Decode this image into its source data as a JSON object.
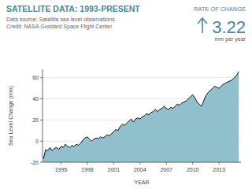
{
  "chart_data": {
    "type": "area",
    "title": "SATELLITE DATA: 1993-PRESENT",
    "subtitle": [
      "Data source: Satellite sea level observations.",
      "Credit: NASA Goddard Space Flight Center"
    ],
    "rate_of_change": {
      "label": "RATE OF CHANGE",
      "value": 3.22,
      "unit": "mm per year"
    },
    "x_label": "YEAR",
    "y_label": "Sea Level Change (mm)",
    "color": "#8fc0cc",
    "grid": true,
    "xlim": [
      1992.9,
      2015.5
    ],
    "xticks": [
      1995,
      1998,
      2001,
      2004,
      2007,
      2010,
      2013
    ],
    "ylim": [
      -20,
      68
    ],
    "yticks": [
      -20,
      0,
      20,
      40,
      60
    ],
    "x": [
      1993.0,
      1993.25,
      1993.5,
      1993.75,
      1994.0,
      1994.25,
      1994.5,
      1994.75,
      1995.0,
      1995.25,
      1995.5,
      1995.75,
      1996.0,
      1996.25,
      1996.5,
      1996.75,
      1997.0,
      1997.25,
      1997.5,
      1997.75,
      1998.0,
      1998.25,
      1998.5,
      1998.75,
      1999.0,
      1999.25,
      1999.5,
      1999.75,
      2000.0,
      2000.25,
      2000.5,
      2000.75,
      2001.0,
      2001.25,
      2001.5,
      2001.75,
      2002.0,
      2002.25,
      2002.5,
      2002.75,
      2003.0,
      2003.25,
      2003.5,
      2003.75,
      2004.0,
      2004.25,
      2004.5,
      2004.75,
      2005.0,
      2005.25,
      2005.5,
      2005.75,
      2006.0,
      2006.25,
      2006.5,
      2006.75,
      2007.0,
      2007.25,
      2007.5,
      2007.75,
      2008.0,
      2008.25,
      2008.5,
      2008.75,
      2009.0,
      2009.25,
      2009.5,
      2009.75,
      2010.0,
      2010.25,
      2010.5,
      2010.75,
      2011.0,
      2011.25,
      2011.5,
      2011.75,
      2012.0,
      2012.25,
      2012.5,
      2012.75,
      2013.0,
      2013.25,
      2013.5,
      2013.75,
      2014.0,
      2014.25,
      2014.5,
      2014.75,
      2015.0,
      2015.25
    ],
    "values": [
      -17,
      -8,
      -9,
      -6,
      -9,
      -7,
      -6,
      -8,
      -5,
      -6,
      -3,
      -5,
      -6,
      -4,
      -5,
      -3,
      -4,
      -2,
      1,
      3,
      4,
      2,
      0,
      2,
      3,
      2,
      4,
      3,
      4,
      6,
      5,
      7,
      9,
      11,
      10,
      14,
      16,
      15,
      17,
      19,
      21,
      18,
      21,
      22,
      21,
      23,
      24,
      26,
      25,
      27,
      28,
      30,
      28,
      30,
      31,
      33,
      31,
      30,
      32,
      31,
      33,
      35,
      34,
      36,
      37,
      38,
      40,
      42,
      44,
      41,
      37,
      35,
      33,
      38,
      43,
      46,
      48,
      50,
      52,
      51,
      50,
      52,
      54,
      55,
      56,
      57,
      58,
      60,
      62,
      66
    ]
  }
}
